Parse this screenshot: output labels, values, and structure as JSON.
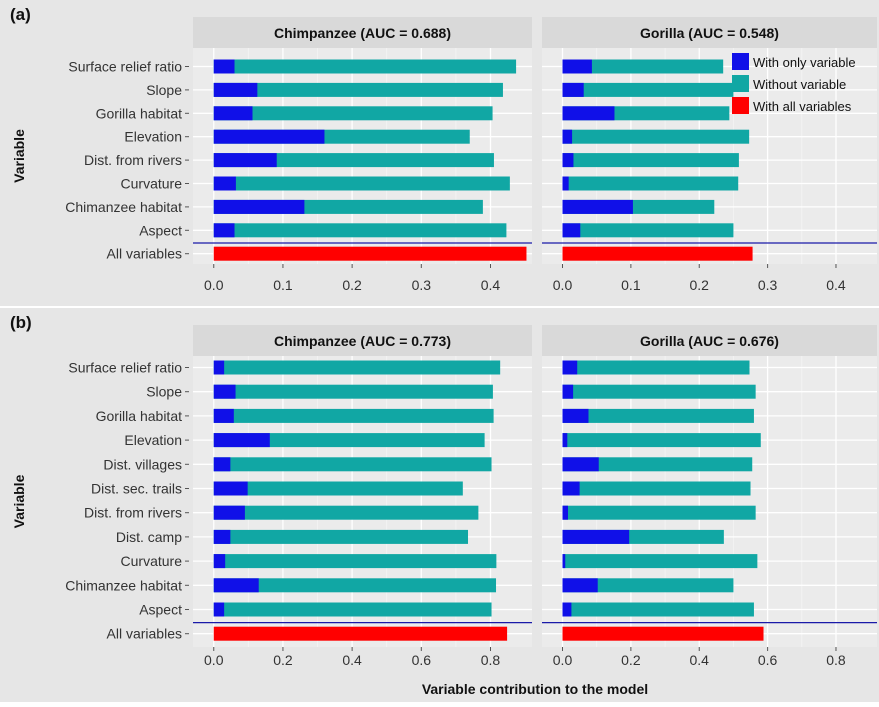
{
  "colors": {
    "only": "#1010e8",
    "without": "#11a7a4",
    "all": "#ff0000",
    "panel_bg": "#ebebeb",
    "strip_bg": "#d9d9d9",
    "outer_bg": "#e6e6e6",
    "hline": "#1a1aa8"
  },
  "xlabel": "Variable contribution to the model",
  "ylabel": "Variable",
  "legend": [
    "With only variable",
    "Without variable",
    "With all variables"
  ],
  "chart_data": [
    {
      "type": "bar",
      "tag": "(a)",
      "xlim": [
        -0.03,
        0.46
      ],
      "ticks": [
        0.0,
        0.1,
        0.2,
        0.3,
        0.4
      ],
      "tick_labels": [
        "0.0",
        "0.1",
        "0.2",
        "0.3",
        "0.4"
      ],
      "categories": [
        "Surface relief ratio",
        "Slope",
        "Gorilla habitat",
        "Elevation",
        "Dist. from rivers",
        "Curvature",
        "Chimanzee habitat",
        "Aspect",
        "All variables"
      ],
      "panels": [
        {
          "title": "Chimpanzee (AUC = 0.688)",
          "without": [
            0.437,
            0.418,
            0.403,
            0.37,
            0.405,
            0.428,
            0.389,
            0.423
          ],
          "only": [
            0.03,
            0.063,
            0.056,
            0.16,
            0.091,
            0.032,
            0.131,
            0.03
          ],
          "all": 0.452
        },
        {
          "title": "Gorilla (AUC = 0.548)",
          "without": [
            0.235,
            0.25,
            0.244,
            0.273,
            0.258,
            0.257,
            0.222,
            0.25
          ],
          "only": [
            0.043,
            0.031,
            0.076,
            0.014,
            0.016,
            0.009,
            0.103,
            0.026
          ],
          "all": 0.278
        }
      ]
    },
    {
      "type": "bar",
      "tag": "(b)",
      "xlim": [
        -0.06,
        0.92
      ],
      "ticks": [
        0.0,
        0.2,
        0.4,
        0.6,
        0.8
      ],
      "tick_labels": [
        "0.0",
        "0.2",
        "0.4",
        "0.6",
        "0.8"
      ],
      "categories": [
        "Surface relief ratio",
        "Slope",
        "Gorilla habitat",
        "Elevation",
        "Dist. villages",
        "Dist. sec. trails",
        "Dist. from rivers",
        "Dist. camp",
        "Curvature",
        "Chimanzee habitat",
        "Aspect",
        "All variables"
      ],
      "panels": [
        {
          "title": "Chimpanzee (AUC = 0.773)",
          "without": [
            0.828,
            0.807,
            0.809,
            0.783,
            0.803,
            0.72,
            0.765,
            0.735,
            0.817,
            0.816,
            0.803
          ],
          "only": [
            0.03,
            0.063,
            0.058,
            0.162,
            0.048,
            0.098,
            0.09,
            0.048,
            0.033,
            0.13,
            0.03
          ],
          "all": 0.848
        },
        {
          "title": "Gorilla (AUC = 0.676)",
          "without": [
            0.547,
            0.565,
            0.56,
            0.58,
            0.555,
            0.55,
            0.565,
            0.472,
            0.57,
            0.5,
            0.56
          ],
          "only": [
            0.043,
            0.031,
            0.076,
            0.014,
            0.106,
            0.05,
            0.016,
            0.195,
            0.008,
            0.103,
            0.026
          ],
          "all": 0.588
        }
      ]
    }
  ]
}
